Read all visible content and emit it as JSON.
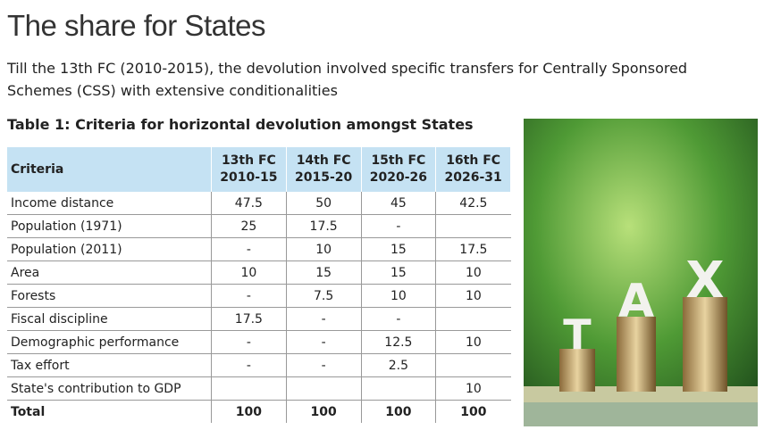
{
  "header": {
    "title": "The share for States",
    "subtitle": "Till the 13th FC (2010-2015), the devolution involved specific transfers for Centrally Sponsored Schemes (CSS) with extensive conditionalities"
  },
  "table": {
    "caption": "Table 1: Criteria for horizontal devolution amongst  States",
    "first_header": "Criteria",
    "columns": [
      {
        "label": "13th FC",
        "period": "2010-15"
      },
      {
        "label": "14th FC",
        "period": "2015-20"
      },
      {
        "label": "15th FC",
        "period": "2020-26"
      },
      {
        "label": "16th FC",
        "period": "2026-31"
      }
    ],
    "rows": [
      [
        "Income distance",
        "47.5",
        "50",
        "45",
        "42.5"
      ],
      [
        "Population (1971)",
        "25",
        "17.5",
        "-",
        null
      ],
      [
        "Population (2011)",
        "-",
        "10",
        "15",
        "17.5"
      ],
      [
        "Area",
        "10",
        "15",
        "15",
        "10"
      ],
      [
        "Forests",
        "-",
        "7.5",
        "10",
        "10"
      ],
      [
        "Fiscal discipline",
        "17.5",
        "-",
        "-",
        null
      ],
      [
        "Demographic performance",
        "-",
        "-",
        "12.5",
        "10"
      ],
      [
        "Tax effort",
        "-",
        "-",
        "2.5",
        null
      ],
      [
        "State's contribution to GDP",
        null,
        null,
        null,
        "10"
      ],
      [
        "Total",
        "100",
        "100",
        "100",
        "100"
      ]
    ]
  },
  "image": {
    "letters": [
      "T",
      "A",
      "X"
    ]
  }
}
